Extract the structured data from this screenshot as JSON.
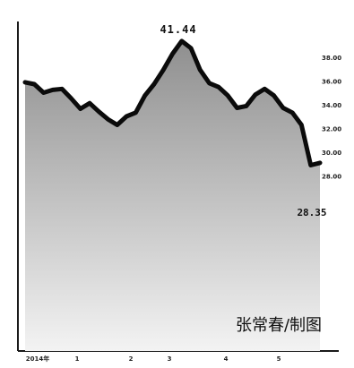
{
  "chart_data": {
    "type": "area",
    "x_tick_labels": [
      "2014年",
      "1",
      "2",
      "3",
      "4",
      "5"
    ],
    "y_tick_labels": [
      "38.00",
      "36.00",
      "34.00",
      "32.00",
      "30.00",
      "28.00"
    ],
    "ylim": [
      25.0,
      42.0
    ],
    "series": [
      {
        "values": [
          37.1,
          36.9,
          36.0,
          36.3,
          36.4,
          35.4,
          34.3,
          34.9,
          34.0,
          33.2,
          32.6,
          33.5,
          33.9,
          35.7,
          36.9,
          38.4,
          40.1,
          41.44,
          40.7,
          38.4,
          37.0,
          36.6,
          35.7,
          34.4,
          34.6,
          35.8,
          36.4,
          35.7,
          34.4,
          33.9,
          32.6,
          28.35,
          28.6
        ]
      }
    ],
    "annotations": {
      "max_label": "41.44",
      "min_label": "28.35"
    },
    "grid": false,
    "fill_gradient": [
      "#8f8f8f",
      "#f3f3f3"
    ]
  },
  "credit": "张常春/制图"
}
